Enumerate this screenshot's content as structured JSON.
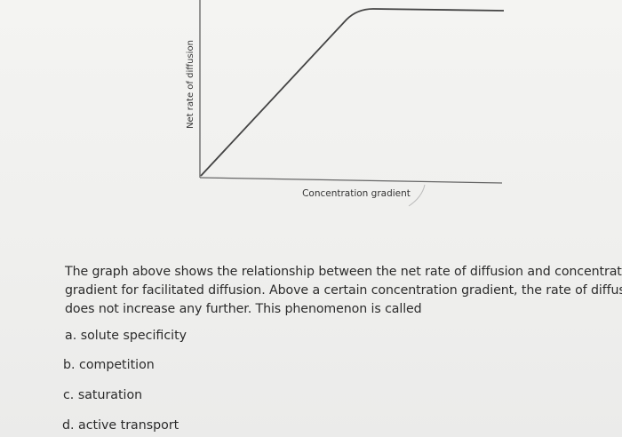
{
  "graph": {
    "y_axis_label": "Net rate of diffusion",
    "x_axis_label": "Concentration gradient"
  },
  "question": {
    "lines": [
      "The graph above shows the relationship between the net rate of diffusion and concentration",
      "gradient for facilitated diffusion. Above a certain concentration gradient, the rate of diffusion",
      "does not increase any further. This phenomenon is called"
    ],
    "options": [
      "a. solute specificity",
      "b. competition",
      "c. saturation",
      "d. active transport"
    ]
  }
}
